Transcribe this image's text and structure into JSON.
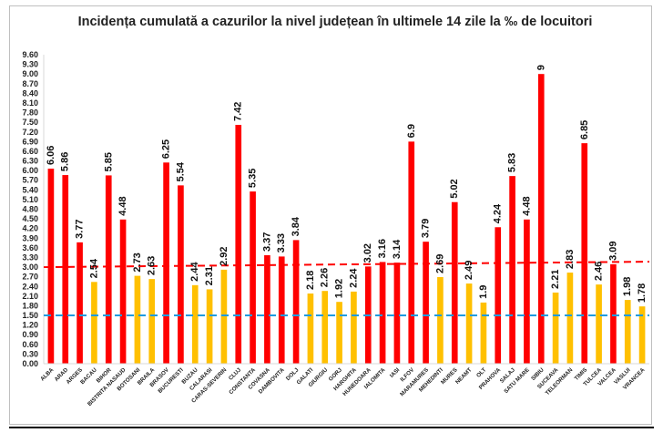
{
  "chart_data": {
    "type": "bar",
    "title": "Incidența cumulată a cazurilor la nivel județean în ultimele 14 zile la ‰ de locuitori",
    "xlabel": "",
    "ylabel": "",
    "ylim": [
      0,
      9.6
    ],
    "ytick_step": 0.3,
    "grid": false,
    "categories": [
      "ALBA",
      "ARAD",
      "ARGES",
      "BACAU",
      "BIHOR",
      "BISTRITA NASAUD",
      "BOTOSANI",
      "BRAILA",
      "BRASOV",
      "BUCURESTI",
      "BUZAU",
      "CALARASI",
      "CARAS-SEVERIN",
      "CLUJ",
      "CONSTANTA",
      "COVASNA",
      "DAMBOVITA",
      "DOLJ",
      "GALATI",
      "GIURGIU",
      "GORJ",
      "HARGHITA",
      "HUNEDOARA",
      "IALOMITA",
      "IASI",
      "ILFOV",
      "MARAMURES",
      "MEHEDINTI",
      "MURES",
      "NEAMT",
      "OLT",
      "PRAHOVA",
      "SALAJ",
      "SATU MARE",
      "SIBIU",
      "SUCEAVA",
      "TELEORMAN",
      "TIMIS",
      "TULCEA",
      "VALCEA",
      "VASLUI",
      "VRANCEA"
    ],
    "values": [
      6.06,
      5.86,
      3.77,
      2.54,
      5.85,
      4.48,
      2.73,
      2.63,
      6.25,
      5.54,
      2.44,
      2.31,
      2.92,
      7.42,
      5.35,
      3.37,
      3.33,
      3.84,
      2.18,
      2.26,
      1.92,
      2.24,
      3.02,
      3.16,
      3.14,
      6.9,
      3.79,
      2.69,
      5.02,
      2.49,
      1.9,
      4.24,
      5.83,
      4.48,
      9,
      2.21,
      2.83,
      6.85,
      2.46,
      3.09,
      1.98,
      1.78
    ],
    "value_labels": [
      "6.06",
      "5.86",
      "3.77",
      "2.54",
      "5.85",
      "4.48",
      "2.73",
      "2.63",
      "6.25",
      "5.54",
      "2.44",
      "2.31",
      "2.92",
      "7.42",
      "5.35",
      "3.37",
      "3.33",
      "3.84",
      "2.18",
      "2.26",
      "1.92",
      "2.24",
      "3.02",
      "3.16",
      "3.14",
      "6.9",
      "3.79",
      "2.69",
      "5.02",
      "2.49",
      "1.9",
      "4.24",
      "5.83",
      "4.48",
      "9",
      "2.21",
      "2.83",
      "6.85",
      "2.46",
      "3.09",
      "1.98",
      "1.78"
    ],
    "thresholds": [
      {
        "value": 3.0,
        "color": "#ff0000",
        "style": "dashed"
      },
      {
        "value": 1.5,
        "color": "#1e9be0",
        "style": "dashed"
      }
    ],
    "colors": {
      "above": "#ff0000",
      "below": "#ffc000"
    }
  }
}
